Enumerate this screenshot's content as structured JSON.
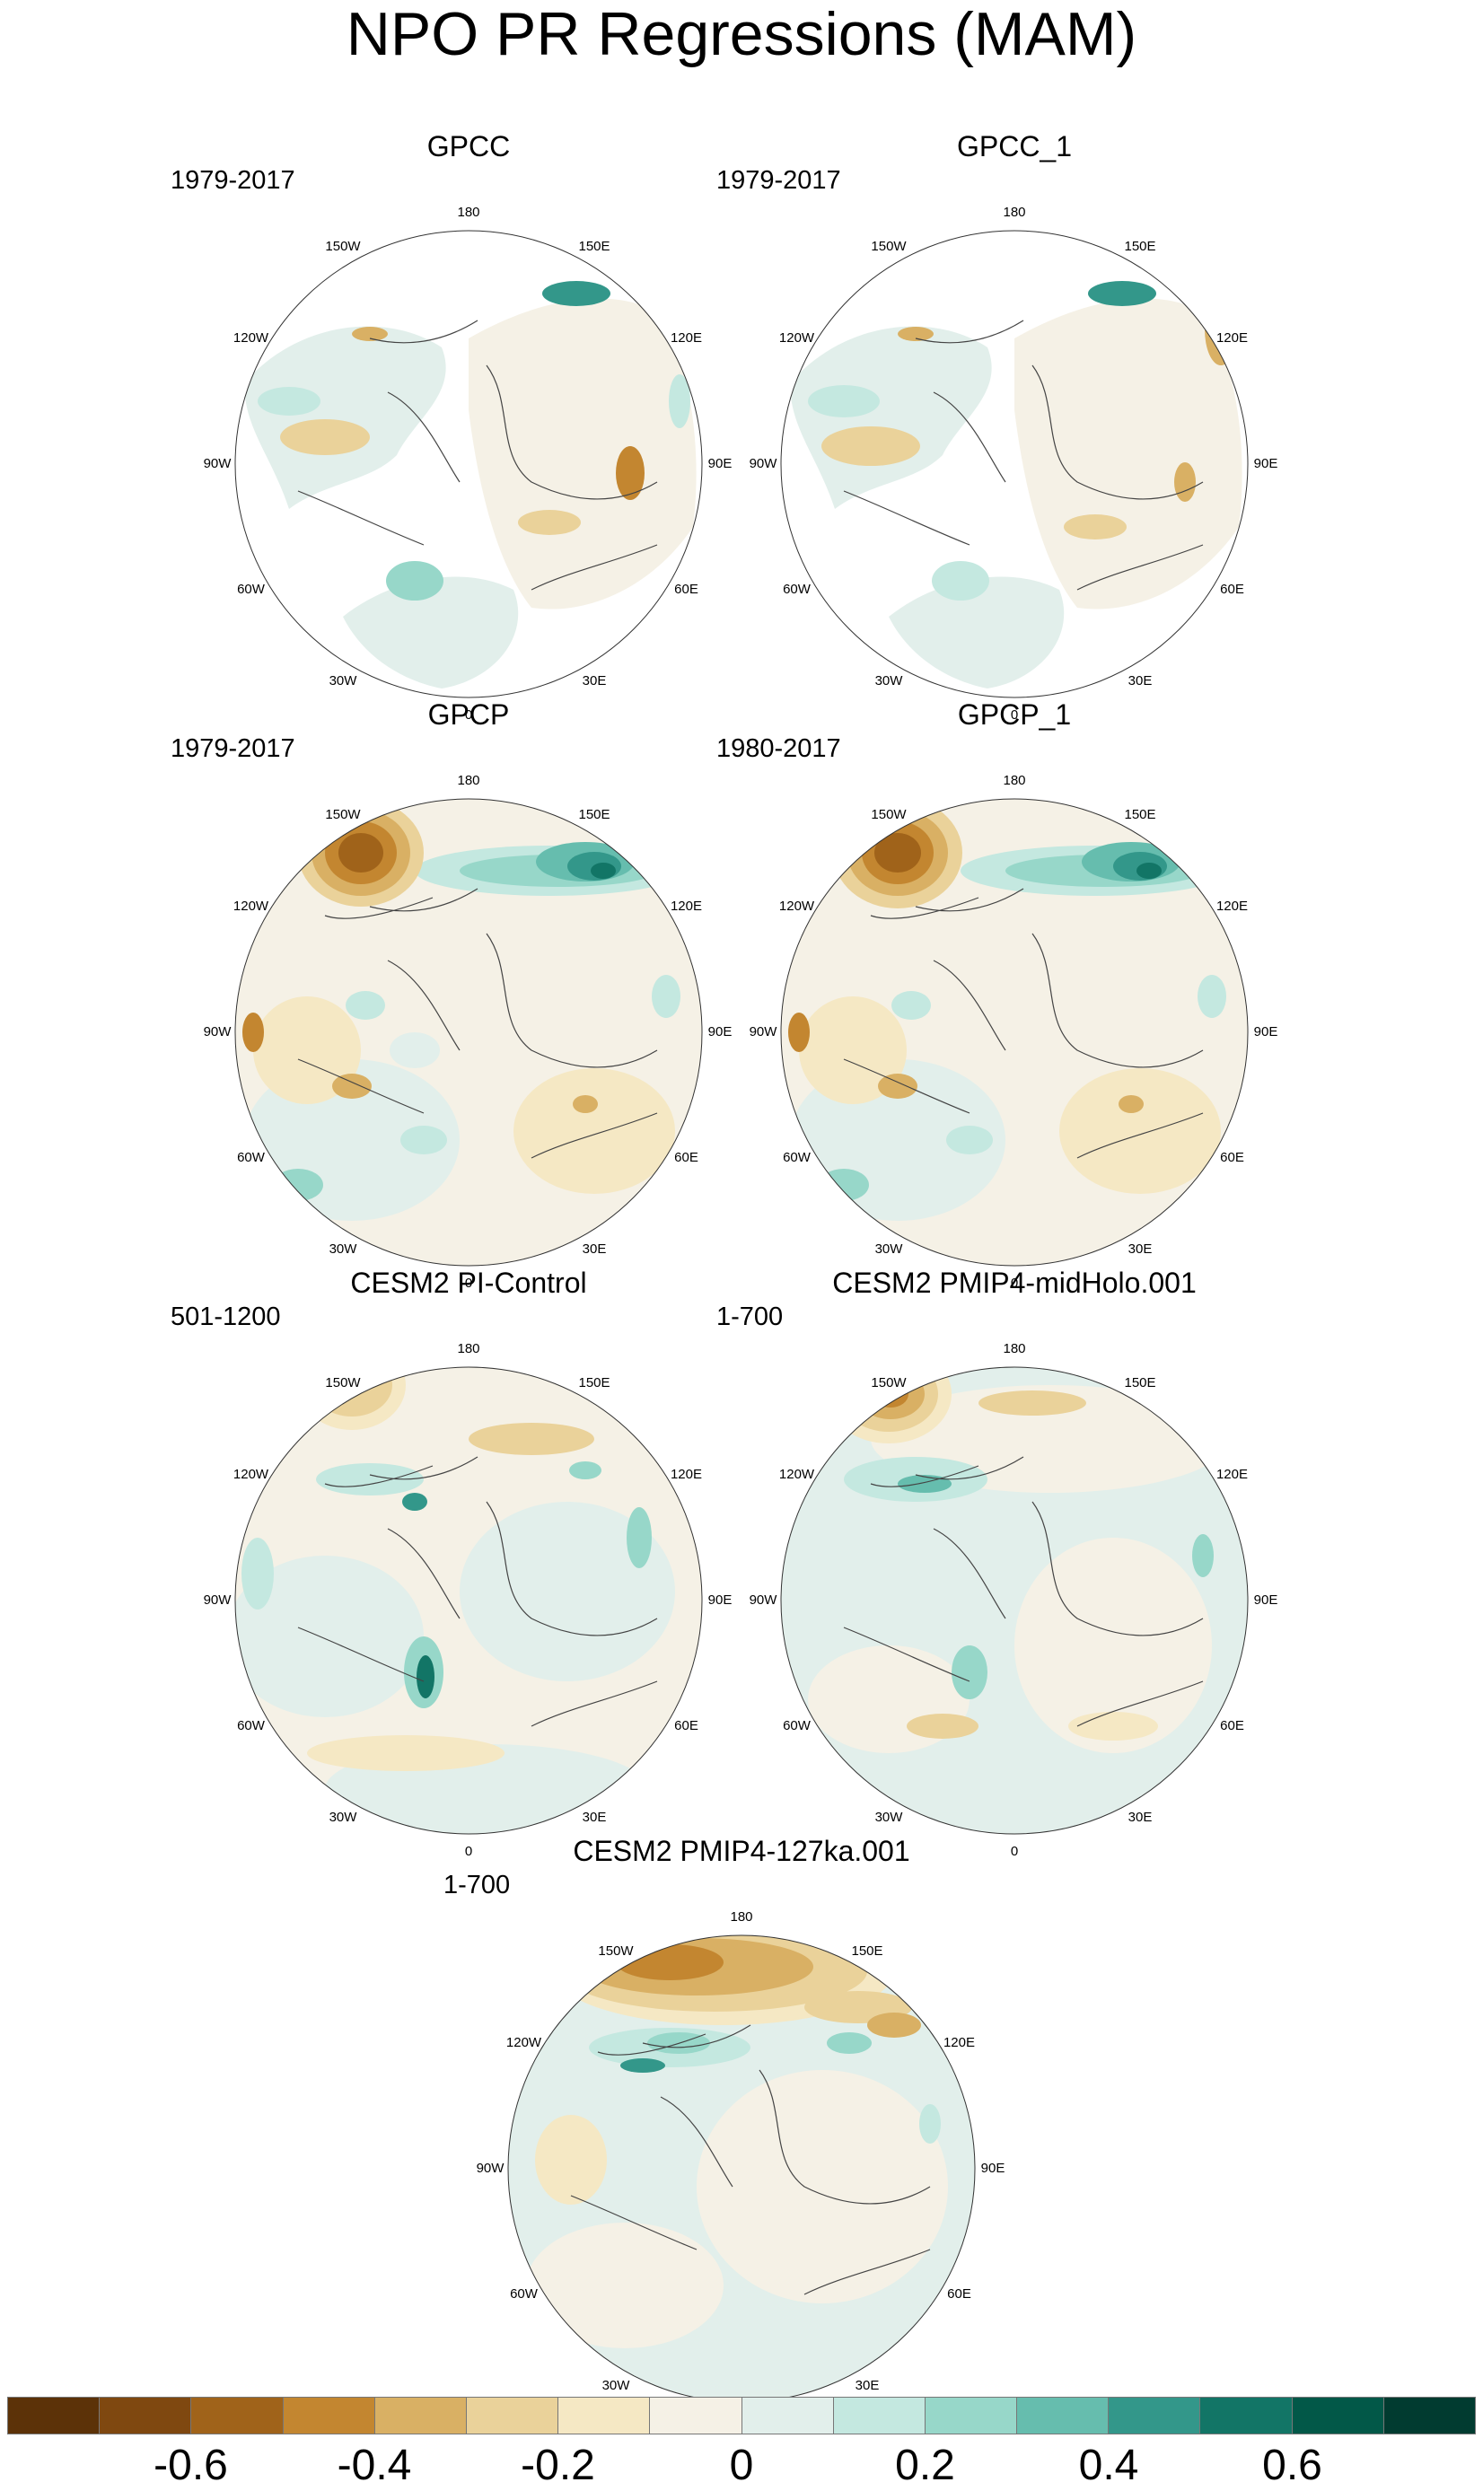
{
  "figure": {
    "title": "NPO PR Regressions (MAM)"
  },
  "panels": [
    {
      "title": "GPCC",
      "period": "1979-2017"
    },
    {
      "title": "GPCC_1",
      "period": "1979-2017"
    },
    {
      "title": "GPCP",
      "period": "1979-2017"
    },
    {
      "title": "GPCP_1",
      "period": "1980-2017"
    },
    {
      "title": "CESM2 PI-Control",
      "period": "501-1200"
    },
    {
      "title": "CESM2 PMIP4-midHolo.001",
      "period": "1-700"
    },
    {
      "title": "CESM2 PMIP4-127ka.001",
      "period": "1-700"
    }
  ],
  "longitude_labels": [
    "180",
    "150E",
    "120E",
    "90E",
    "60E",
    "30E",
    "0",
    "30W",
    "60W",
    "90W",
    "120W",
    "150W"
  ],
  "colorbar": {
    "colors": [
      "#5c3208",
      "#7f4810",
      "#a0631a",
      "#c38630",
      "#d9b064",
      "#ead29a",
      "#f5e8c4",
      "#f5f1e6",
      "#e2efeb",
      "#c4e8e0",
      "#97d7c9",
      "#66bdae",
      "#33978a",
      "#127566",
      "#025848",
      "#013b30"
    ],
    "tick_labels": [
      "-0.6",
      "-0.4",
      "-0.2",
      "0",
      "0.2",
      "0.4",
      "0.6"
    ]
  }
}
